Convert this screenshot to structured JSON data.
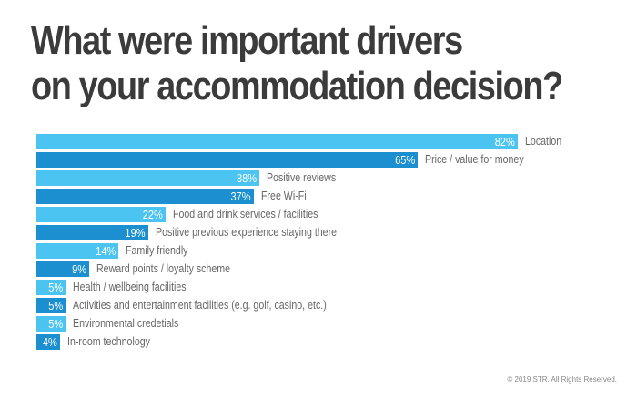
{
  "chart_data": {
    "type": "bar",
    "orientation": "horizontal",
    "title": "What were important drivers on your accommodation decision?",
    "categories": [
      "Location",
      "Price / value for money",
      "Positive reviews",
      "Free Wi-Fi",
      "Food and drink services / facilities",
      "Positive previous experience staying there",
      "Family friendly",
      "Reward points / loyalty scheme",
      "Health / wellbeing facilities",
      "Activities and entertainment facilities (e.g. golf, casino, etc.)",
      "Environmental credetials",
      "In-room technology"
    ],
    "values": [
      82,
      65,
      38,
      37,
      22,
      19,
      14,
      9,
      5,
      5,
      5,
      4
    ],
    "unit": "%",
    "xlim": [
      0,
      100
    ],
    "grid": false,
    "colors": [
      "#4cc4f2",
      "#1b8fd0"
    ]
  },
  "footer": {
    "copyright": "© 2019 STR. All Rights Reserved."
  }
}
